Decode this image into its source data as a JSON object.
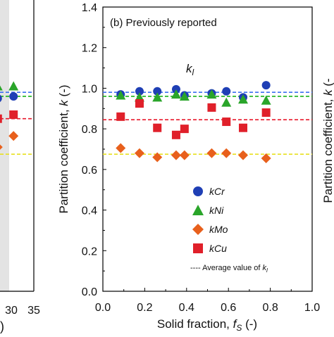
{
  "chart_data": [
    {
      "type": "scatter",
      "panel": "left-partial",
      "xlabel": ")",
      "x_tick_labels": [
        "30",
        "35"
      ],
      "reference_lines": [
        {
          "name": "kCr",
          "value": 0.98,
          "color": "#3a6ff0"
        },
        {
          "name": "kNi",
          "value": 0.96,
          "color": "#19b319"
        },
        {
          "name": "kCu",
          "value": 0.85,
          "color": "#e8192c"
        },
        {
          "name": "kMo",
          "value": 0.675,
          "color": "#e8e020"
        }
      ],
      "series": [
        {
          "name": "kCr",
          "marker": "circle",
          "color": "#1f3fb5",
          "points": [
            {
              "x": 27,
              "y": 0.95
            },
            {
              "x": 30.5,
              "y": 0.96
            }
          ]
        },
        {
          "name": "kNi",
          "marker": "triangle",
          "color": "#2aa52a",
          "points": [
            {
              "x": 27,
              "y": 1.01
            },
            {
              "x": 30.5,
              "y": 1.01
            }
          ]
        },
        {
          "name": "kCu",
          "marker": "square",
          "color": "#e0202a",
          "points": [
            {
              "x": 27,
              "y": 0.85
            },
            {
              "x": 30.5,
              "y": 0.87
            }
          ]
        },
        {
          "name": "kMo",
          "marker": "diamond",
          "color": "#e8601c",
          "points": [
            {
              "x": 27,
              "y": 0.71
            },
            {
              "x": 30.5,
              "y": 0.765
            }
          ]
        }
      ]
    },
    {
      "type": "scatter",
      "panel": "b",
      "title": "(b) Previously reported",
      "annotation": "k",
      "annotation_sub": "l",
      "xlabel": "Solid fraction, ",
      "xlabel_sym": "f",
      "xlabel_sub": "S",
      "xlabel_unit": " (-)",
      "ylabel": "Partition coefficient, ",
      "ylabel_sym": "k",
      "ylabel_unit": " (-)",
      "xlim": [
        0.0,
        1.0
      ],
      "ylim": [
        0.0,
        1.4
      ],
      "x_tick_labels": [
        "0.0",
        "0.2",
        "0.4",
        "0.6",
        "0.8",
        "1.0"
      ],
      "y_tick_labels": [
        "0.0",
        "0.2",
        "0.4",
        "0.6",
        "0.8",
        "1.0",
        "1.2",
        "1.4"
      ],
      "reference_lines": [
        {
          "name": "kCr",
          "value": 0.98,
          "color": "#3a6ff0"
        },
        {
          "name": "kNi",
          "value": 0.96,
          "color": "#19b319"
        },
        {
          "name": "kCu",
          "value": 0.845,
          "color": "#e8192c"
        },
        {
          "name": "kMo",
          "value": 0.675,
          "color": "#e8e020"
        }
      ],
      "series": [
        {
          "name": "kCr",
          "marker": "circle",
          "color": "#1f3fb5",
          "points": [
            {
              "x": 0.085,
              "y": 0.97
            },
            {
              "x": 0.175,
              "y": 0.985
            },
            {
              "x": 0.26,
              "y": 0.985
            },
            {
              "x": 0.35,
              "y": 0.995
            },
            {
              "x": 0.39,
              "y": 0.965
            },
            {
              "x": 0.52,
              "y": 0.975
            },
            {
              "x": 0.59,
              "y": 0.985
            },
            {
              "x": 0.67,
              "y": 0.955
            },
            {
              "x": 0.78,
              "y": 1.015
            }
          ]
        },
        {
          "name": "kNi",
          "marker": "triangle",
          "color": "#2aa52a",
          "points": [
            {
              "x": 0.085,
              "y": 0.965
            },
            {
              "x": 0.175,
              "y": 0.955
            },
            {
              "x": 0.26,
              "y": 0.955
            },
            {
              "x": 0.35,
              "y": 0.97
            },
            {
              "x": 0.39,
              "y": 0.96
            },
            {
              "x": 0.52,
              "y": 0.97
            },
            {
              "x": 0.59,
              "y": 0.93
            },
            {
              "x": 0.67,
              "y": 0.945
            },
            {
              "x": 0.78,
              "y": 0.94
            }
          ]
        },
        {
          "name": "kMo",
          "marker": "diamond",
          "color": "#e8601c",
          "points": [
            {
              "x": 0.085,
              "y": 0.705
            },
            {
              "x": 0.175,
              "y": 0.68
            },
            {
              "x": 0.26,
              "y": 0.66
            },
            {
              "x": 0.35,
              "y": 0.67
            },
            {
              "x": 0.39,
              "y": 0.67
            },
            {
              "x": 0.52,
              "y": 0.68
            },
            {
              "x": 0.59,
              "y": 0.68
            },
            {
              "x": 0.67,
              "y": 0.67
            },
            {
              "x": 0.78,
              "y": 0.655
            }
          ]
        },
        {
          "name": "kCu",
          "marker": "square",
          "color": "#e0202a",
          "points": [
            {
              "x": 0.085,
              "y": 0.86
            },
            {
              "x": 0.175,
              "y": 0.925
            },
            {
              "x": 0.26,
              "y": 0.805
            },
            {
              "x": 0.35,
              "y": 0.77
            },
            {
              "x": 0.39,
              "y": 0.8
            },
            {
              "x": 0.52,
              "y": 0.905
            },
            {
              "x": 0.59,
              "y": 0.835
            },
            {
              "x": 0.67,
              "y": 0.805
            },
            {
              "x": 0.78,
              "y": 0.88
            }
          ]
        }
      ],
      "legend": {
        "placement": "bottom-right",
        "entries": [
          {
            "sym": "k",
            "label": "Cr",
            "marker": "circle",
            "color": "#1f3fb5"
          },
          {
            "sym": "k",
            "label": "Ni",
            "marker": "triangle",
            "color": "#2aa52a"
          },
          {
            "sym": "k",
            "label": "Mo",
            "marker": "diamond",
            "color": "#e8601c"
          },
          {
            "sym": "k",
            "label": "Cu",
            "marker": "square",
            "color": "#e0202a"
          }
        ],
        "avg_label": "---- Average value of ",
        "avg_sym": "k",
        "avg_sub": "l"
      }
    },
    {
      "type": "scatter",
      "panel": "right-partial",
      "ylabel": "Partition coefficient, ",
      "ylabel_sym": "k",
      "ylabel_unit": " (-"
    }
  ]
}
